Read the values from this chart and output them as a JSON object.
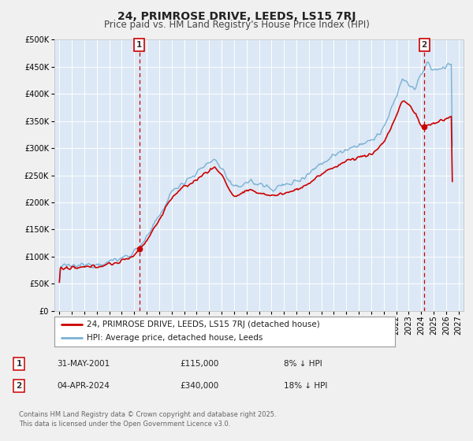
{
  "title": "24, PRIMROSE DRIVE, LEEDS, LS15 7RJ",
  "subtitle": "Price paid vs. HM Land Registry's House Price Index (HPI)",
  "ylim": [
    0,
    500000
  ],
  "yticks": [
    0,
    50000,
    100000,
    150000,
    200000,
    250000,
    300000,
    350000,
    400000,
    450000,
    500000
  ],
  "xlim_start": 1994.6,
  "xlim_end": 2027.4,
  "fig_bg_color": "#f0f0f0",
  "plot_bg_color": "#dce8f5",
  "grid_color": "#ffffff",
  "sale1_date": 2001.415,
  "sale1_price": 115000,
  "sale2_date": 2024.253,
  "sale2_price": 340000,
  "red_line_color": "#cc0000",
  "blue_line_color": "#7ab0d4",
  "dashed_line_color": "#cc0000",
  "annotation_box_color": "#cc0000",
  "legend_label_red": "24, PRIMROSE DRIVE, LEEDS, LS15 7RJ (detached house)",
  "legend_label_blue": "HPI: Average price, detached house, Leeds",
  "table_row1": [
    "1",
    "31-MAY-2001",
    "£115,000",
    "8% ↓ HPI"
  ],
  "table_row2": [
    "2",
    "04-APR-2024",
    "£340,000",
    "18% ↓ HPI"
  ],
  "footnote": "Contains HM Land Registry data © Crown copyright and database right 2025.\nThis data is licensed under the Open Government Licence v3.0.",
  "title_fontsize": 10,
  "subtitle_fontsize": 8.5,
  "tick_fontsize": 7,
  "legend_fontsize": 7.5,
  "table_fontsize": 7.5,
  "footnote_fontsize": 6
}
